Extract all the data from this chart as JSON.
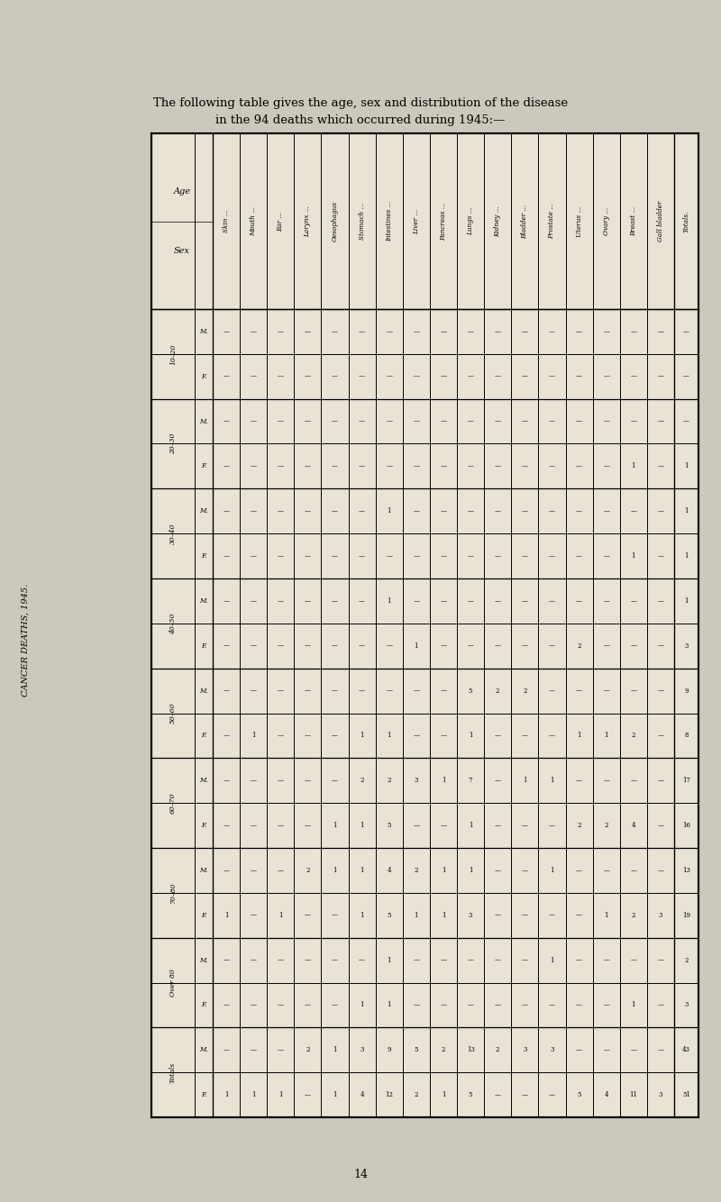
{
  "title_text": "The following table gives the age, sex and distribution of the disease\nin the 94 deaths which occurred during 1945:—",
  "table_title": "CANCER DEATHS, 1945.",
  "page_number": "14",
  "bg_color": "#ccc8bb",
  "paper_color": "#e8e3d5",
  "diseases": [
    "Skin",
    "Mouth",
    "Ear",
    "Larynx",
    "Oesophagus",
    "Stomach",
    "Intestines",
    "Liver",
    "Pancreas",
    "Lungs",
    "Kidney",
    "Bladder",
    "Prostate",
    "Uterus",
    "Ovary",
    "Breast",
    "Gall bladder",
    "Totals"
  ],
  "age_groups": [
    "10–20",
    "20–30",
    "30–40",
    "40–50",
    "50–60",
    "60–70",
    "70–80",
    "Over 80",
    "Totals."
  ],
  "table_data": {
    "Skin": [
      "-",
      "-",
      "-",
      "-",
      "-",
      "-",
      "-",
      "-",
      "-",
      "-",
      "-",
      "-",
      "-",
      "1",
      "-",
      "-",
      "-",
      "1"
    ],
    "Mouth": [
      "-",
      "-",
      "-",
      "-",
      "-",
      "-",
      "-",
      "-",
      "-",
      "1",
      "-",
      "-",
      "-",
      "-",
      "-",
      "-",
      "-",
      "1"
    ],
    "Ear": [
      "-",
      "-",
      "-",
      "-",
      "-",
      "-",
      "-",
      "-",
      "-",
      "-",
      "-",
      "-",
      "-",
      "1",
      "-",
      "-",
      "-",
      "1"
    ],
    "Larynx": [
      "-",
      "-",
      "-",
      "-",
      "-",
      "-",
      "-",
      "-",
      "-",
      "-",
      "-",
      "-",
      "2",
      "-",
      "-",
      "-",
      "2",
      "-"
    ],
    "Oesophagus": [
      "-",
      "-",
      "-",
      "-",
      "-",
      "-",
      "-",
      "-",
      "-",
      "-",
      "-",
      "1",
      "1",
      "-",
      "-",
      "-",
      "1",
      "1"
    ],
    "Stomach": [
      "-",
      "-",
      "-",
      "-",
      "-",
      "-",
      "-",
      "-",
      "-",
      "1",
      "2",
      "1",
      "1",
      "1",
      "-",
      "1",
      "3",
      "4"
    ],
    "Intestines": [
      "-",
      "-",
      "-",
      "-",
      "1",
      "-",
      "1",
      "-",
      "-",
      "1",
      "2",
      "5",
      "4",
      "5",
      "1",
      "1",
      "9",
      "12"
    ],
    "Liver": [
      "-",
      "-",
      "-",
      "-",
      "-",
      "-",
      "-",
      "1",
      "-",
      "-",
      "3",
      "-",
      "2",
      "1",
      "-",
      "-",
      "5",
      "2"
    ],
    "Pancreas": [
      "-",
      "-",
      "-",
      "-",
      "-",
      "-",
      "-",
      "-",
      "-",
      "-",
      "1",
      "-",
      "1",
      "1",
      "-",
      "-",
      "2",
      "1"
    ],
    "Lungs": [
      "-",
      "-",
      "-",
      "-",
      "-",
      "-",
      "-",
      "-",
      "5",
      "1",
      "7",
      "1",
      "1",
      "3",
      "-",
      "-",
      "13",
      "5"
    ],
    "Kidney": [
      "-",
      "-",
      "-",
      "-",
      "-",
      "-",
      "-",
      "-",
      "2",
      "-",
      "-",
      "-",
      "-",
      "-",
      "-",
      "-",
      "2",
      "-"
    ],
    "Bladder": [
      "-",
      "-",
      "-",
      "-",
      "-",
      "-",
      "-",
      "-",
      "2",
      "-",
      "1",
      "-",
      "-",
      "-",
      "-",
      "-",
      "3",
      "-"
    ],
    "Prostate": [
      "-",
      "-",
      "-",
      "-",
      "-",
      "-",
      "-",
      "-",
      "-",
      "-",
      "1",
      "-",
      "1",
      "-",
      "1",
      "-",
      "3",
      "-"
    ],
    "Uterus": [
      "-",
      "-",
      "-",
      "-",
      "-",
      "-",
      "-",
      "2",
      "-",
      "1",
      "-",
      "2",
      "-",
      "-",
      "-",
      "-",
      "-",
      "5"
    ],
    "Ovary": [
      "-",
      "-",
      "-",
      "-",
      "-",
      "-",
      "-",
      "-",
      "-",
      "1",
      "-",
      "2",
      "-",
      "1",
      "-",
      "-",
      "-",
      "4"
    ],
    "Breast": [
      "-",
      "-",
      "-",
      "1",
      "-",
      "1",
      "-",
      "-",
      "-",
      "2",
      "-",
      "4",
      "-",
      "2",
      "-",
      "1",
      "-",
      "11"
    ],
    "Gall bladder": [
      "-",
      "-",
      "-",
      "-",
      "-",
      "-",
      "-",
      "-",
      "-",
      "-",
      "-",
      "-",
      "-",
      "3",
      "-",
      "-",
      "-",
      "3"
    ],
    "Totals": [
      "-",
      "-",
      "-",
      "1",
      "1",
      "1",
      "1",
      "3",
      "9",
      "8",
      "17",
      "16",
      "13",
      "19",
      "2",
      "3",
      "43",
      "51"
    ]
  },
  "disease_suffixes": {
    "Skin": " ...",
    "Mouth": " ...",
    "Ear": " ...",
    "Larynx": " ...",
    "Oesophagus": "",
    "Stomach": " ...",
    "Intestines": " ...",
    "Liver": " ...",
    "Pancreas": " ...",
    "Lungs": " ...",
    "Kidney": " ...",
    "Bladder": " ...",
    "Prostate": " ...",
    "Uterus": " ...",
    "Ovary": " ...",
    "Breast": " ...",
    "Gall bladder": "",
    "Totals": ""
  },
  "totals_row_label": "Totals"
}
